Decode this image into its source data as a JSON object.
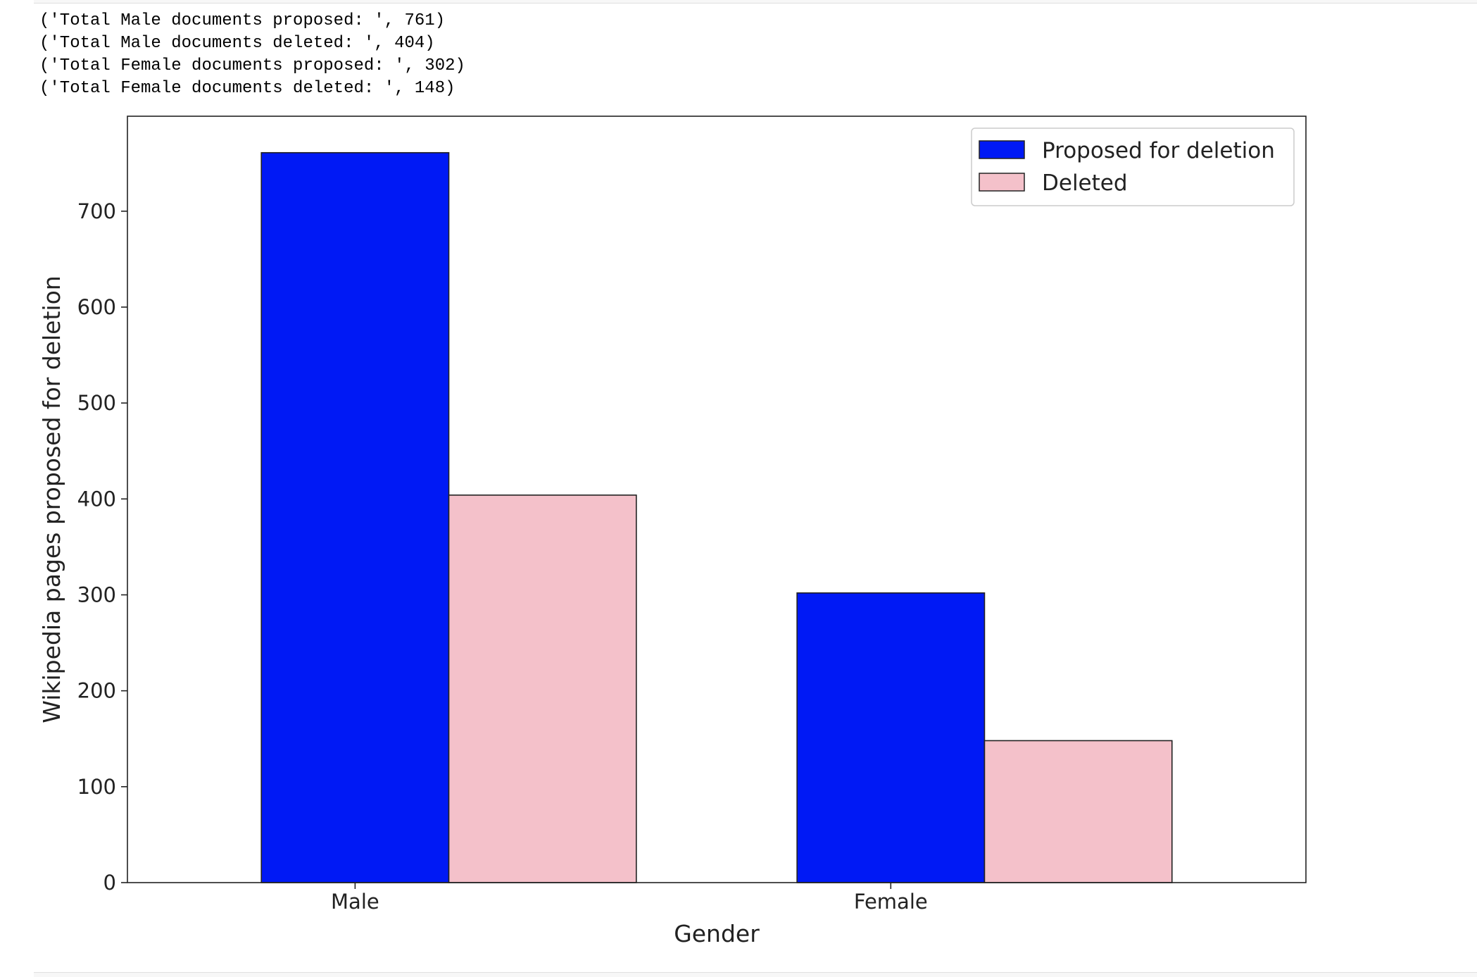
{
  "output": {
    "lines": [
      "('Total Male documents proposed: ', 761)",
      "('Total Male documents deleted: ', 404)",
      "('Total Female documents proposed: ', 302)",
      "('Total Female documents deleted: ', 148)"
    ]
  },
  "chart_data": {
    "type": "bar",
    "title": "",
    "xlabel": "Gender",
    "ylabel": "Wikipedia pages proposed for deletion",
    "categories": [
      "Male",
      "Female"
    ],
    "series": [
      {
        "name": "Proposed for deletion",
        "values": [
          761,
          302
        ],
        "color": "#0019f5"
      },
      {
        "name": "Deleted",
        "values": [
          404,
          148
        ],
        "color": "#f4c1ca"
      }
    ],
    "yticks": [
      0,
      100,
      200,
      300,
      400,
      500,
      600,
      700
    ],
    "ylim": [
      0,
      799
    ],
    "grid": false,
    "legend_position": "top-right"
  }
}
